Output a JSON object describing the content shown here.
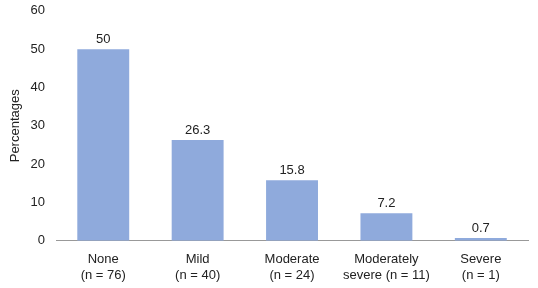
{
  "chart_data": {
    "type": "bar",
    "y_label": "Percentages",
    "categories": [
      [
        "None",
        "(n = 76)"
      ],
      [
        "Mild",
        "(n = 40)"
      ],
      [
        "Moderate",
        "(n = 24)"
      ],
      [
        "Moderately",
        "severe (n = 11)"
      ],
      [
        "Severe",
        "(n = 1)"
      ]
    ],
    "values": [
      50,
      26.3,
      15.8,
      7.2,
      0.7
    ],
    "color": "#8faadc",
    "ylim": [
      0,
      60
    ],
    "yticks": [
      0,
      10,
      20,
      30,
      40,
      50,
      60
    ],
    "grid": false,
    "data_labels": true
  }
}
